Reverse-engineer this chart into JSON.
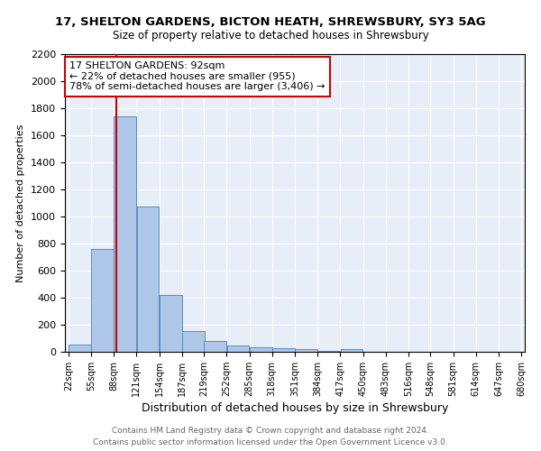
{
  "title_line1": "17, SHELTON GARDENS, BICTON HEATH, SHREWSBURY, SY3 5AG",
  "title_line2": "Size of property relative to detached houses in Shrewsbury",
  "xlabel": "Distribution of detached houses by size in Shrewsbury",
  "ylabel": "Number of detached properties",
  "footnote1": "Contains HM Land Registry data © Crown copyright and database right 2024.",
  "footnote2": "Contains public sector information licensed under the Open Government Licence v3.0.",
  "bar_color": "#aec6e8",
  "bar_edge_color": "#5a8fc2",
  "background_color": "#e8eef7",
  "bins": [
    "22sqm",
    "55sqm",
    "88sqm",
    "121sqm",
    "154sqm",
    "187sqm",
    "219sqm",
    "252sqm",
    "285sqm",
    "318sqm",
    "351sqm",
    "384sqm",
    "417sqm",
    "450sqm",
    "483sqm",
    "516sqm",
    "548sqm",
    "581sqm",
    "614sqm",
    "647sqm",
    "680sqm"
  ],
  "bin_edges": [
    22,
    55,
    88,
    121,
    154,
    187,
    219,
    252,
    285,
    318,
    351,
    384,
    417,
    450,
    483,
    516,
    548,
    581,
    614,
    647,
    680
  ],
  "bar_heights": [
    55,
    760,
    1740,
    1075,
    420,
    155,
    80,
    45,
    35,
    25,
    20,
    5,
    20,
    0,
    0,
    0,
    0,
    0,
    0,
    0
  ],
  "property_size": 92,
  "property_label": "17 SHELTON GARDENS: 92sqm",
  "annotation_line2": "← 22% of detached houses are smaller (955)",
  "annotation_line3": "78% of semi-detached houses are larger (3,406) →",
  "vline_color": "#cc0000",
  "annotation_box_edge_color": "#cc0000",
  "ylim": [
    0,
    2200
  ],
  "yticks": [
    0,
    200,
    400,
    600,
    800,
    1000,
    1200,
    1400,
    1600,
    1800,
    2000,
    2200
  ]
}
